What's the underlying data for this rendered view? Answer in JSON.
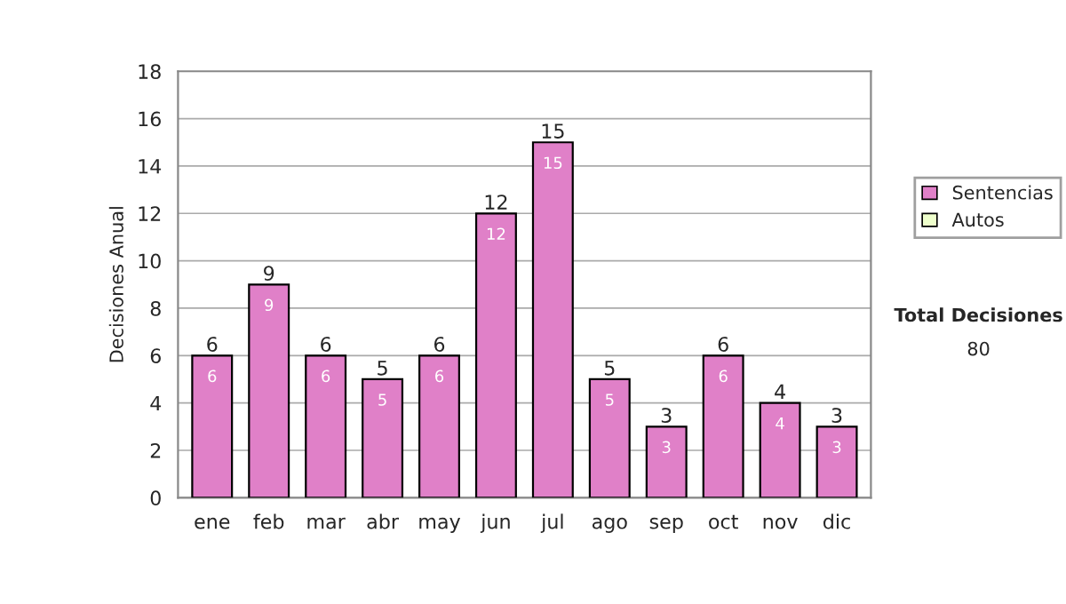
{
  "chart_data": {
    "type": "bar",
    "stacked": true,
    "ylabel": "Decisiones Anual",
    "categories": [
      "ene",
      "feb",
      "mar",
      "abr",
      "may",
      "jun",
      "jul",
      "ago",
      "sep",
      "oct",
      "nov",
      "dic"
    ],
    "series": [
      {
        "name": "Sentencias",
        "color": "#e080c8",
        "values": [
          6,
          9,
          6,
          5,
          6,
          12,
          15,
          5,
          3,
          6,
          4,
          3
        ]
      },
      {
        "name": "Autos",
        "color": "#eeffcc",
        "values": [
          null,
          null,
          null,
          null,
          null,
          null,
          null,
          null,
          null,
          null,
          null,
          null
        ]
      }
    ],
    "data_labels": true,
    "totals": [
      "6",
      "9",
      "6",
      "5",
      "6",
      "12",
      "15",
      "5",
      "3",
      "6",
      "4",
      "3"
    ],
    "ylim": [
      0,
      18
    ],
    "yticks": [
      0,
      2,
      4,
      6,
      8,
      10,
      12,
      14,
      16,
      18
    ],
    "grid": "y",
    "legend": "right",
    "annotations": [
      "Total Decisiones",
      "80"
    ]
  }
}
